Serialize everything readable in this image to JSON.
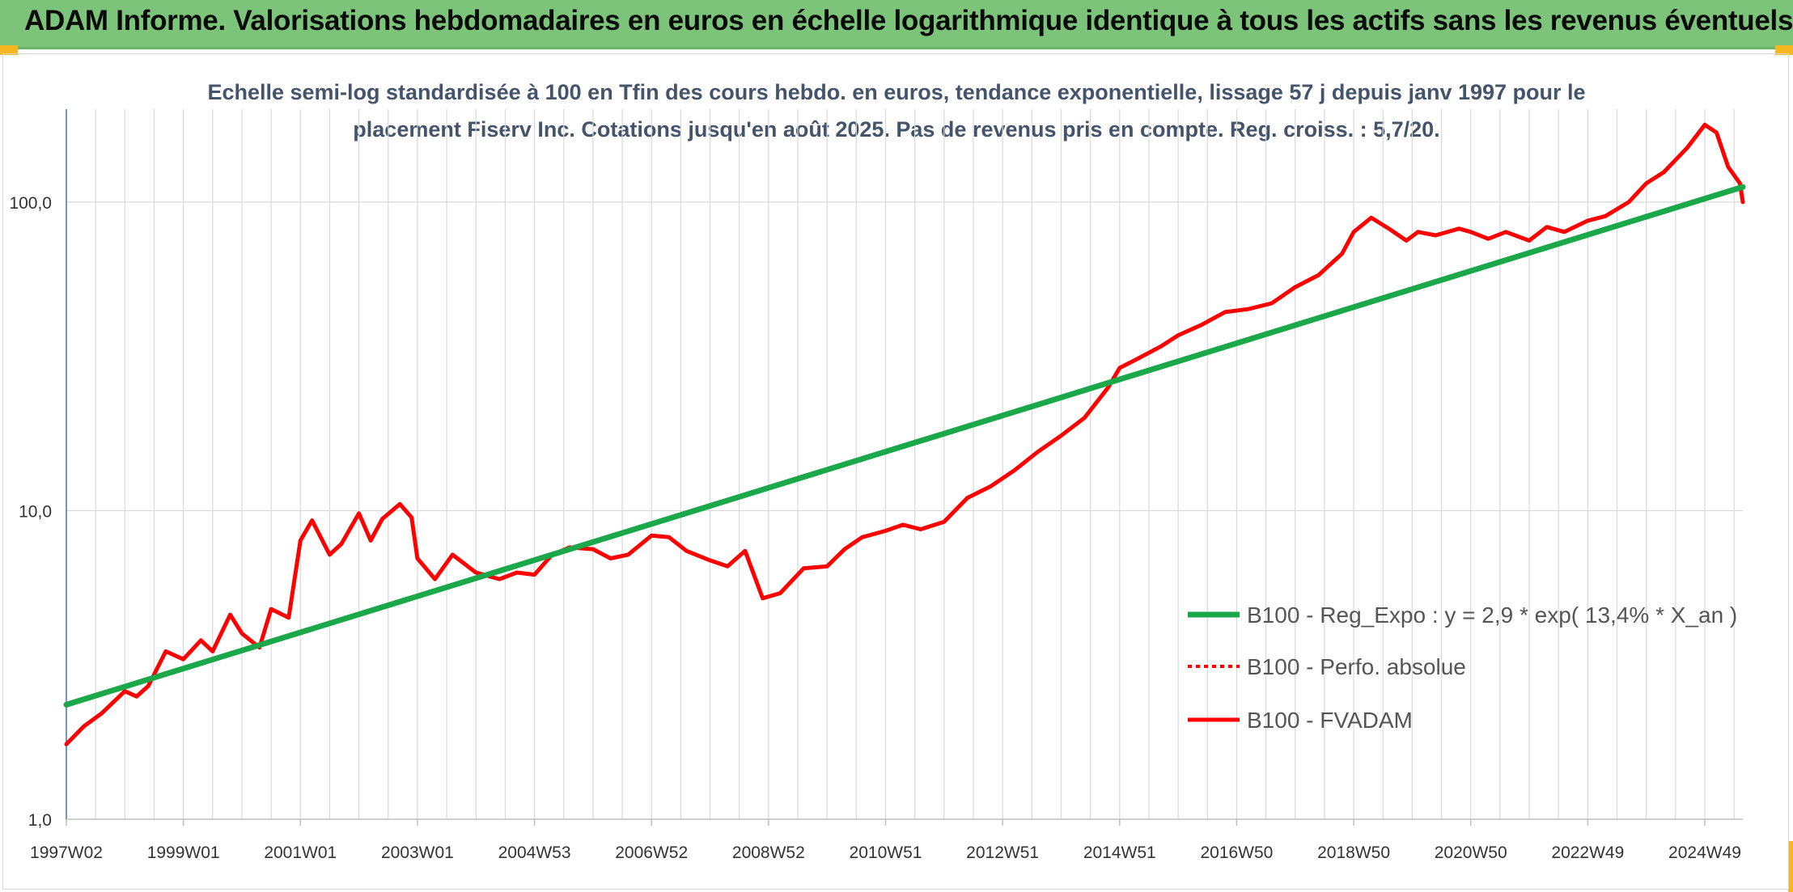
{
  "header": {
    "title": "ADAM Informe. Valorisations hebdomadaires en euros en échelle logarithmique identique à tous les actifs sans les revenus éventuels"
  },
  "colors": {
    "header_bg": "#7cc47a",
    "green_line": "#1ba84a",
    "red_line": "#ff0000",
    "grid": "#d9d9d9"
  },
  "chart_data": {
    "type": "line",
    "title_line1": "Echelle semi-log standardisée à 100 en Tfin des cours hebdo. en euros, tendance exponentielle, lissage 57 j depuis janv 1997 pour le",
    "title_line2": "placement Fiserv Inc. Cotations jusqu'en août 2025. Pas de revenus pris en compte. Reg. croiss. : 5,7/20.",
    "y_scale": "log",
    "ylim": [
      1,
      200
    ],
    "y_ticks": [
      {
        "value": 1,
        "label": "1,0"
      },
      {
        "value": 10,
        "label": "10,0"
      },
      {
        "value": 100,
        "label": "100,0"
      }
    ],
    "x_range": [
      1997.0,
      2025.65
    ],
    "x_ticks": [
      {
        "x": 1997.0,
        "label": "1997W02"
      },
      {
        "x": 1999.0,
        "label": "1999W01"
      },
      {
        "x": 2001.0,
        "label": "2001W01"
      },
      {
        "x": 2003.0,
        "label": "2003W01"
      },
      {
        "x": 2005.0,
        "label": "2004W53"
      },
      {
        "x": 2007.0,
        "label": "2006W52"
      },
      {
        "x": 2009.0,
        "label": "2008W52"
      },
      {
        "x": 2011.0,
        "label": "2010W51"
      },
      {
        "x": 2013.0,
        "label": "2012W51"
      },
      {
        "x": 2015.0,
        "label": "2014W51"
      },
      {
        "x": 2017.0,
        "label": "2016W50"
      },
      {
        "x": 2019.0,
        "label": "2018W50"
      },
      {
        "x": 2021.0,
        "label": "2020W50"
      },
      {
        "x": 2023.0,
        "label": "2022W49"
      },
      {
        "x": 2025.0,
        "label": "2024W49"
      }
    ],
    "legend_position": "right",
    "series": [
      {
        "name": "B100 - Reg_Expo : y = 2,9 * exp( 13,4% *  X_an )",
        "style": "solid-green",
        "x": [
          1997.0,
          2025.65
        ],
        "values": [
          2.35,
          112
        ]
      },
      {
        "name": "B100 - Perfo. absolue",
        "style": "dotted-red",
        "x": [],
        "values": []
      },
      {
        "name": "B100 - FVADAM",
        "style": "solid-red",
        "x": [
          1997.0,
          1997.3,
          1997.6,
          1998.0,
          1998.2,
          1998.4,
          1998.7,
          1999.0,
          1999.3,
          1999.5,
          1999.8,
          2000.0,
          2000.3,
          2000.5,
          2000.8,
          2001.0,
          2001.2,
          2001.5,
          2001.7,
          2002.0,
          2002.2,
          2002.4,
          2002.7,
          2002.9,
          2003.0,
          2003.3,
          2003.6,
          2004.0,
          2004.4,
          2004.7,
          2005.0,
          2005.3,
          2005.6,
          2006.0,
          2006.3,
          2006.6,
          2007.0,
          2007.3,
          2007.6,
          2008.0,
          2008.3,
          2008.6,
          2008.9,
          2009.2,
          2009.6,
          2010.0,
          2010.3,
          2010.6,
          2011.0,
          2011.3,
          2011.6,
          2012.0,
          2012.4,
          2012.8,
          2013.2,
          2013.6,
          2014.0,
          2014.4,
          2014.8,
          2015.0,
          2015.3,
          2015.7,
          2016.0,
          2016.4,
          2016.8,
          2017.2,
          2017.6,
          2018.0,
          2018.4,
          2018.8,
          2019.0,
          2019.3,
          2019.6,
          2019.9,
          2020.1,
          2020.4,
          2020.8,
          2021.0,
          2021.3,
          2021.6,
          2022.0,
          2022.3,
          2022.6,
          2023.0,
          2023.3,
          2023.7,
          2024.0,
          2024.3,
          2024.7,
          2025.0,
          2025.2,
          2025.4,
          2025.6,
          2025.65
        ],
        "values": [
          1.75,
          2.0,
          2.2,
          2.6,
          2.5,
          2.7,
          3.5,
          3.3,
          3.8,
          3.5,
          4.6,
          4.0,
          3.6,
          4.8,
          4.5,
          8.0,
          9.3,
          7.2,
          7.8,
          9.8,
          8.0,
          9.4,
          10.5,
          9.5,
          7.0,
          6.0,
          7.2,
          6.3,
          6.0,
          6.3,
          6.2,
          7.2,
          7.6,
          7.5,
          7.0,
          7.2,
          8.3,
          8.2,
          7.4,
          6.9,
          6.6,
          7.4,
          5.2,
          5.4,
          6.5,
          6.6,
          7.5,
          8.2,
          8.6,
          9.0,
          8.7,
          9.2,
          11.0,
          12.0,
          13.5,
          15.5,
          17.5,
          20.0,
          25.0,
          29.0,
          31.0,
          34.0,
          37.0,
          40.0,
          44.0,
          45.0,
          47.0,
          53.0,
          58.0,
          68.0,
          80.0,
          89.0,
          82.0,
          75.0,
          80.0,
          78.0,
          82.0,
          80.0,
          76.0,
          80.0,
          75.0,
          83.0,
          80.0,
          87.0,
          90.0,
          100.0,
          115.0,
          125.0,
          150.0,
          178.0,
          168.0,
          130.0,
          115.0,
          100.0
        ]
      }
    ]
  }
}
